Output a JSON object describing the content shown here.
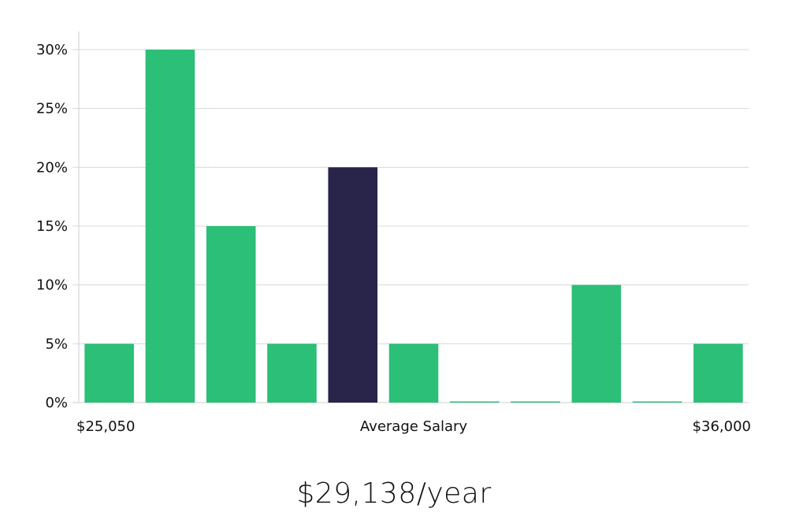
{
  "chart_data": {
    "type": "bar",
    "title": "",
    "xlabel": "Average Salary",
    "ylabel": "",
    "ylim": [
      0,
      30
    ],
    "yticks": [
      0,
      5,
      10,
      15,
      20,
      25,
      30
    ],
    "ytick_labels": [
      "0%",
      "5%",
      "10%",
      "15%",
      "20%",
      "25%",
      "30%"
    ],
    "x_start_label": "$25,050",
    "x_end_label": "$36,000",
    "values": [
      5,
      30,
      15,
      5,
      20,
      5,
      0,
      0,
      10,
      0,
      5
    ],
    "highlight_index": 4,
    "colors": {
      "bar": "#2bbf77",
      "highlight": "#29244a",
      "grid": "#d8d8d8",
      "axis": "#cfcfcf"
    }
  },
  "summary": {
    "salary_text": "$29,138/year"
  }
}
